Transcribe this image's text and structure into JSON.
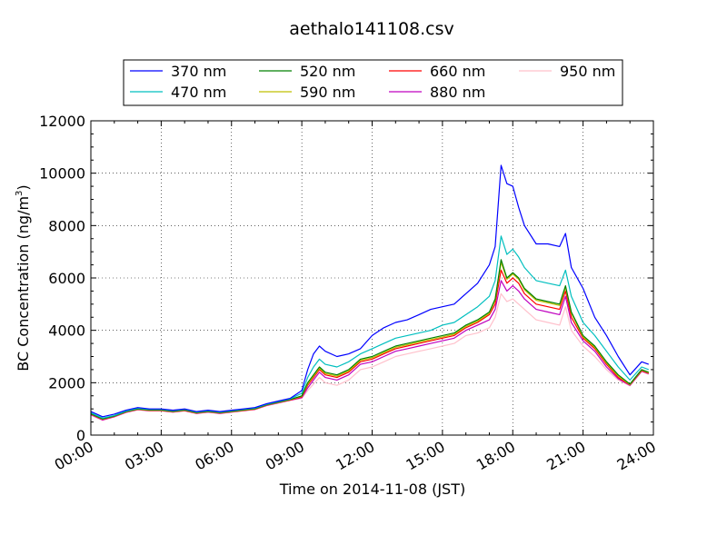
{
  "chart_data": {
    "type": "line",
    "title": "aethalo141108.csv",
    "xlabel": "Time on 2014-11-08 (JST)",
    "ylabel_main": "BC Concentration (ng/m",
    "ylabel_sup": "3",
    "ylabel_close": ")",
    "xlim": [
      0,
      24
    ],
    "ylim": [
      0,
      12000
    ],
    "x_ticks": [
      0,
      3,
      6,
      9,
      12,
      15,
      18,
      21,
      24
    ],
    "x_tick_labels": [
      "00:00",
      "03:00",
      "06:00",
      "09:00",
      "12:00",
      "15:00",
      "18:00",
      "21:00",
      "24:00"
    ],
    "y_ticks": [
      0,
      2000,
      4000,
      6000,
      8000,
      10000,
      12000
    ],
    "y_tick_labels": [
      "0",
      "2000",
      "4000",
      "6000",
      "8000",
      "10000",
      "12000"
    ],
    "grid": true,
    "legend_position": "top, above plot",
    "x_hours": [
      0.0,
      0.5,
      1.0,
      1.5,
      2.0,
      2.5,
      3.0,
      3.5,
      4.0,
      4.5,
      5.0,
      5.5,
      6.0,
      6.5,
      7.0,
      7.5,
      8.0,
      8.5,
      9.0,
      9.25,
      9.5,
      9.75,
      10.0,
      10.5,
      11.0,
      11.5,
      12.0,
      12.5,
      13.0,
      13.5,
      14.0,
      14.5,
      15.0,
      15.5,
      16.0,
      16.5,
      17.0,
      17.25,
      17.5,
      17.75,
      18.0,
      18.25,
      18.5,
      19.0,
      19.5,
      20.0,
      20.25,
      20.5,
      21.0,
      21.5,
      22.0,
      22.5,
      23.0,
      23.5,
      23.8
    ],
    "series": [
      {
        "name": "370 nm",
        "color": "#0000ff",
        "values": [
          900,
          700,
          800,
          950,
          1050,
          1000,
          1000,
          950,
          1000,
          900,
          950,
          900,
          950,
          1000,
          1050,
          1200,
          1300,
          1400,
          1700,
          2500,
          3100,
          3400,
          3200,
          3000,
          3100,
          3300,
          3800,
          4100,
          4300,
          4400,
          4600,
          4800,
          4900,
          5000,
          5400,
          5800,
          6500,
          7200,
          10300,
          9600,
          9500,
          8700,
          8000,
          7300,
          7300,
          7200,
          7700,
          6400,
          5600,
          4500,
          3800,
          3000,
          2300,
          2800,
          2700
        ]
      },
      {
        "name": "470 nm",
        "color": "#00bfbf",
        "values": [
          850,
          650,
          750,
          920,
          1020,
          980,
          980,
          930,
          980,
          880,
          930,
          880,
          930,
          980,
          1030,
          1180,
          1280,
          1380,
          1600,
          2200,
          2600,
          2900,
          2700,
          2600,
          2800,
          3100,
          3300,
          3500,
          3700,
          3800,
          3900,
          4000,
          4200,
          4300,
          4600,
          4900,
          5300,
          5900,
          7600,
          6900,
          7100,
          6800,
          6400,
          5900,
          5800,
          5700,
          6300,
          5300,
          4300,
          3800,
          3200,
          2600,
          2100,
          2600,
          2500
        ]
      },
      {
        "name": "520 nm",
        "color": "#008000",
        "values": [
          820,
          620,
          730,
          900,
          1000,
          960,
          960,
          910,
          960,
          860,
          910,
          860,
          910,
          960,
          1010,
          1160,
          1260,
          1360,
          1500,
          2000,
          2300,
          2600,
          2400,
          2300,
          2500,
          2900,
          3000,
          3200,
          3400,
          3500,
          3600,
          3700,
          3800,
          3900,
          4200,
          4400,
          4700,
          5200,
          6700,
          6000,
          6200,
          6000,
          5600,
          5200,
          5100,
          5000,
          5700,
          4700,
          3800,
          3400,
          2800,
          2300,
          1950,
          2500,
          2400
        ]
      },
      {
        "name": "590 nm",
        "color": "#bfbf00",
        "values": [
          810,
          610,
          720,
          890,
          990,
          950,
          950,
          900,
          950,
          850,
          900,
          850,
          900,
          950,
          1000,
          1150,
          1250,
          1350,
          1480,
          1950,
          2250,
          2550,
          2350,
          2250,
          2450,
          2850,
          2950,
          3150,
          3350,
          3450,
          3550,
          3650,
          3750,
          3850,
          4150,
          4350,
          4650,
          5150,
          6600,
          5950,
          6150,
          5950,
          5550,
          5150,
          5050,
          4950,
          5650,
          4650,
          3750,
          3350,
          2750,
          2250,
          1930,
          2480,
          2380
        ]
      },
      {
        "name": "660 nm",
        "color": "#ff0000",
        "values": [
          800,
          600,
          710,
          880,
          980,
          940,
          940,
          890,
          940,
          840,
          890,
          840,
          890,
          940,
          990,
          1140,
          1240,
          1340,
          1460,
          1900,
          2200,
          2500,
          2300,
          2200,
          2400,
          2800,
          2900,
          3100,
          3300,
          3400,
          3500,
          3600,
          3700,
          3800,
          4100,
          4300,
          4600,
          5000,
          6300,
          5800,
          6000,
          5800,
          5400,
          5000,
          4900,
          4800,
          5500,
          4500,
          3700,
          3300,
          2700,
          2200,
          1920,
          2460,
          2360
        ]
      },
      {
        "name": "880 nm",
        "color": "#bf00bf",
        "values": [
          780,
          580,
          700,
          870,
          970,
          930,
          930,
          880,
          930,
          830,
          880,
          830,
          880,
          930,
          980,
          1130,
          1230,
          1330,
          1430,
          1800,
          2100,
          2400,
          2200,
          2100,
          2300,
          2700,
          2800,
          3000,
          3200,
          3300,
          3400,
          3500,
          3600,
          3700,
          4000,
          4200,
          4400,
          4800,
          5900,
          5500,
          5700,
          5500,
          5200,
          4800,
          4700,
          4600,
          5300,
          4300,
          3600,
          3200,
          2600,
          2150,
          1900,
          2440,
          2340
        ]
      },
      {
        "name": "950 nm",
        "color": "#ffc0cb",
        "values": [
          760,
          560,
          690,
          860,
          960,
          920,
          920,
          870,
          920,
          820,
          870,
          820,
          870,
          920,
          970,
          1120,
          1220,
          1320,
          1400,
          1700,
          1950,
          2200,
          2000,
          1900,
          2100,
          2500,
          2600,
          2800,
          3000,
          3100,
          3200,
          3300,
          3400,
          3500,
          3800,
          3900,
          4100,
          4500,
          5400,
          5100,
          5200,
          5000,
          4800,
          4400,
          4300,
          4200,
          4900,
          4000,
          3400,
          3000,
          2500,
          2100,
          1880,
          2420,
          2320
        ]
      }
    ]
  }
}
